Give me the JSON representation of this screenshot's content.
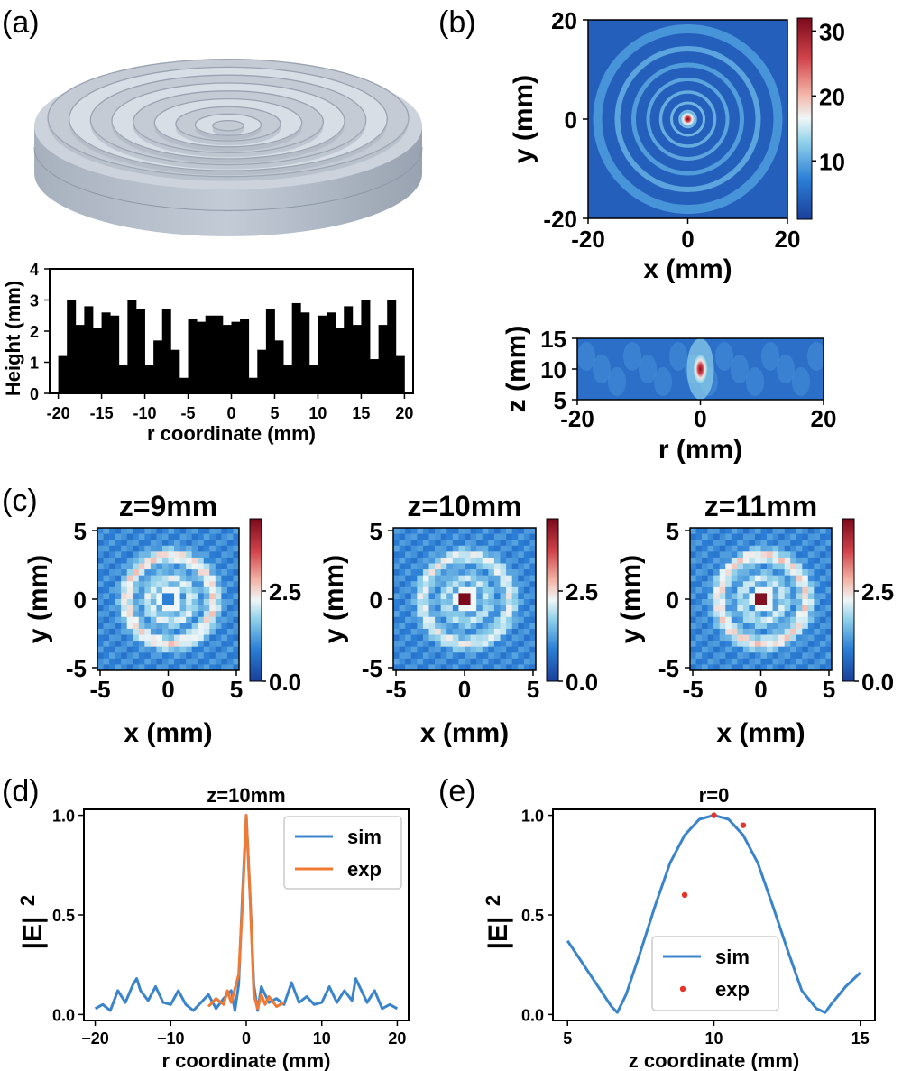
{
  "panels": {
    "a": {
      "label": "(a)",
      "chart_data": {
        "type": "bar",
        "xlabel": "r coordinate (mm)",
        "ylabel": "Height (mm)",
        "xlim": [
          -21,
          21
        ],
        "ylim": [
          0,
          4
        ],
        "xticks": [
          "-20",
          "-15",
          "-10",
          "-5",
          "0",
          "5",
          "10",
          "15",
          "20"
        ],
        "yticks": [
          "0",
          "1",
          "2",
          "3",
          "4"
        ],
        "bin_width": 1,
        "x": [
          -19.5,
          -18.5,
          -17.5,
          -16.5,
          -15.5,
          -14.5,
          -13.5,
          -12.5,
          -11.5,
          -10.5,
          -9.5,
          -8.5,
          -7.5,
          -6.5,
          -5.5,
          -4.5,
          -3.5,
          -2.5,
          -1.5,
          -0.5,
          0.5,
          1.5,
          2.5,
          3.5,
          4.5,
          5.5,
          6.5,
          7.5,
          8.5,
          9.5,
          10.5,
          11.5,
          12.5,
          13.5,
          14.5,
          15.5,
          16.5,
          17.5,
          18.5,
          19.5
        ],
        "values": [
          1.2,
          3.0,
          2.2,
          2.8,
          2.1,
          2.6,
          2.5,
          0.9,
          3.0,
          2.7,
          0.9,
          1.7,
          2.7,
          1.4,
          0.5,
          2.4,
          2.3,
          2.5,
          2.5,
          2.2,
          2.3,
          2.4,
          0.5,
          1.4,
          2.7,
          1.7,
          0.9,
          2.9,
          2.6,
          0.9,
          2.5,
          2.6,
          2.1,
          2.8,
          2.2,
          3.0,
          1.1,
          2.2,
          3.0,
          1.2
        ]
      }
    },
    "b_top": {
      "label": "(b)",
      "chart_data": {
        "type": "heatmap",
        "xlabel": "x (mm)",
        "ylabel": "y (mm)",
        "xticks": [
          "-20",
          "0",
          "20"
        ],
        "yticks": [
          "-20",
          "0",
          "20"
        ],
        "colorbar_ticks": [
          "10",
          "20",
          "30"
        ],
        "clim": [
          1,
          32
        ]
      }
    },
    "b_bottom": {
      "chart_data": {
        "type": "heatmap",
        "xlabel": "r (mm)",
        "ylabel": "z (mm)",
        "xticks": [
          "-20",
          "0",
          "20"
        ],
        "yticks": [
          "5",
          "10",
          "15"
        ]
      }
    },
    "c": {
      "label": "(c)",
      "chart_data": [
        {
          "type": "heatmap",
          "title": "z=9mm",
          "xlabel": "x (mm)",
          "ylabel": "y (mm)",
          "xticks": [
            "-5",
            "0",
            "5"
          ],
          "yticks": [
            "-5",
            "0",
            "5"
          ],
          "colorbar_ticks": [
            "0.0",
            "2.5"
          ],
          "clim": [
            0,
            4.5
          ]
        },
        {
          "type": "heatmap",
          "title": "z=10mm",
          "xlabel": "x (mm)",
          "ylabel": "y (mm)",
          "xticks": [
            "-5",
            "0",
            "5"
          ],
          "yticks": [
            "-5",
            "0",
            "5"
          ],
          "colorbar_ticks": [
            "0.0",
            "2.5"
          ],
          "clim": [
            0,
            4.5
          ]
        },
        {
          "type": "heatmap",
          "title": "z=11mm",
          "xlabel": "x (mm)",
          "ylabel": "y (mm)",
          "xticks": [
            "-5",
            "0",
            "5"
          ],
          "yticks": [
            "-5",
            "0",
            "5"
          ],
          "colorbar_ticks": [
            "0.0",
            "2.5"
          ],
          "clim": [
            0,
            4.5
          ]
        }
      ]
    },
    "d": {
      "label": "(d)",
      "chart_data": {
        "type": "line",
        "title": "z=10mm",
        "xlabel": "r coordinate (mm)",
        "ylabel": "|E|",
        "ylabel_sup": "2",
        "xlim": [
          -21.5,
          21.5
        ],
        "ylim": [
          -0.03,
          1.03
        ],
        "xticks": [
          "−20",
          "−10",
          "0",
          "10",
          "20"
        ],
        "yticks": [
          "0.0",
          "0.5",
          "1.0"
        ],
        "legend": "top-right",
        "series": [
          {
            "name": "sim",
            "color": "#3a84cc",
            "x": [
              -20,
              -19,
              -18,
              -17,
              -16,
              -15,
              -14.5,
              -14,
              -13,
              -12,
              -11,
              -10,
              -9,
              -8,
              -7,
              -6,
              -5,
              -4,
              -3,
              -2,
              -1.5,
              -1,
              -0.5,
              0,
              0.5,
              1,
              1.5,
              2,
              3,
              4,
              5,
              6,
              7,
              8,
              9,
              10,
              11,
              12,
              13,
              14,
              14.5,
              15,
              16,
              17,
              18,
              19,
              20
            ],
            "y": [
              0.03,
              0.05,
              0.02,
              0.12,
              0.06,
              0.15,
              0.18,
              0.12,
              0.07,
              0.14,
              0.06,
              0.05,
              0.12,
              0.05,
              0.02,
              0.06,
              0.1,
              0.03,
              0.08,
              0.12,
              0.02,
              0.15,
              0.6,
              1.0,
              0.6,
              0.15,
              0.02,
              0.14,
              0.06,
              0.08,
              0.05,
              0.16,
              0.06,
              0.09,
              0.05,
              0.06,
              0.14,
              0.06,
              0.12,
              0.07,
              0.18,
              0.14,
              0.06,
              0.12,
              0.03,
              0.05,
              0.03
            ]
          },
          {
            "name": "exp",
            "color": "#f07a34",
            "x": [
              -5,
              -4,
              -3,
              -2.5,
              -2,
              -1,
              -0.5,
              0,
              0.5,
              1,
              1.5,
              2,
              2.5,
              3,
              4,
              5
            ],
            "y": [
              0.04,
              0.08,
              0.05,
              0.12,
              0.06,
              0.2,
              0.55,
              1.0,
              0.6,
              0.1,
              0.03,
              0.1,
              0.05,
              0.09,
              0.04,
              0.06
            ]
          }
        ]
      }
    },
    "e": {
      "label": "(e)",
      "chart_data": {
        "type": "line",
        "title": "r=0",
        "xlabel": "z coordinate (mm)",
        "ylabel": "|E|",
        "ylabel_sup": "2",
        "xlim": [
          4.5,
          15.5
        ],
        "ylim": [
          -0.03,
          1.03
        ],
        "xticks": [
          "5",
          "10",
          "15"
        ],
        "yticks": [
          "0.0",
          "0.5",
          "1.0"
        ],
        "legend": "bottom-center",
        "series": [
          {
            "name": "sim",
            "color": "#3a84cc",
            "x": [
              5,
              5.5,
              6,
              6.5,
              6.7,
              7,
              7.5,
              8,
              8.5,
              9,
              9.5,
              10,
              10.5,
              11,
              11.5,
              12,
              12.5,
              13,
              13.5,
              13.8,
              14,
              14.5,
              15
            ],
            "y": [
              0.37,
              0.26,
              0.15,
              0.04,
              0.01,
              0.1,
              0.32,
              0.55,
              0.76,
              0.9,
              0.98,
              1.0,
              0.98,
              0.9,
              0.76,
              0.55,
              0.33,
              0.12,
              0.03,
              0.01,
              0.05,
              0.14,
              0.21
            ]
          },
          {
            "name": "exp",
            "color": "#e8332a",
            "type": "scatter",
            "x": [
              9,
              10,
              11
            ],
            "y": [
              0.6,
              1.0,
              0.95
            ]
          }
        ]
      }
    }
  }
}
